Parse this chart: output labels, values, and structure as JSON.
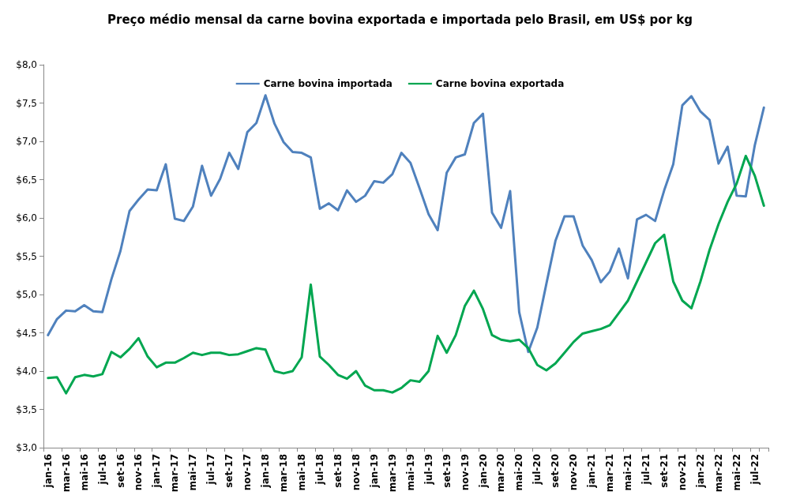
{
  "chart_data": {
    "type": "line",
    "title": "Preço médio mensal da carne bovina exportada e importada pelo Brasil, em US$ por kg",
    "categories": [
      "jan-16",
      null,
      "mar-16",
      null,
      "mai-16",
      null,
      "jul-16",
      null,
      "set-16",
      null,
      "nov-16",
      null,
      "jan-17",
      null,
      "mar-17",
      null,
      "mai-17",
      null,
      "jul-17",
      null,
      "set-17",
      null,
      "nov-17",
      null,
      "jan-18",
      null,
      "mar-18",
      null,
      "mai-18",
      null,
      "jul-18",
      null,
      "set-18",
      null,
      "nov-18",
      null,
      "jan-19",
      null,
      "mar-19",
      null,
      "mai-19",
      null,
      "jul-19",
      null,
      "set-19",
      null,
      "nov-19",
      null,
      "jan-20",
      null,
      "mar-20",
      null,
      "mai-20",
      null,
      "jul-20",
      null,
      "set-20",
      null,
      "nov-20",
      null,
      "jan-21",
      null,
      "mar-21",
      null,
      "mai-21",
      null,
      "jul-21",
      null,
      "set-21",
      null,
      "nov-21",
      null,
      "jan-22",
      null,
      "mar-22",
      null,
      "mai-22",
      null,
      "jul-22",
      null
    ],
    "series": [
      {
        "name": "Carne bovina importada",
        "color": "#4f81bd",
        "values": [
          4.47,
          4.68,
          4.79,
          4.78,
          4.86,
          4.78,
          4.77,
          5.2,
          5.57,
          6.09,
          6.24,
          6.37,
          6.36,
          6.7,
          5.99,
          5.96,
          6.15,
          6.68,
          6.29,
          6.51,
          6.85,
          6.64,
          7.12,
          7.24,
          7.6,
          7.23,
          6.99,
          6.86,
          6.85,
          6.79,
          6.12,
          6.19,
          6.1,
          6.36,
          6.21,
          6.29,
          6.48,
          6.46,
          6.57,
          6.85,
          6.72,
          6.39,
          6.05,
          5.84,
          6.59,
          6.79,
          6.83,
          7.24,
          7.36,
          6.07,
          5.87,
          6.35,
          4.77,
          4.25,
          4.57,
          5.14,
          5.7,
          6.02,
          6.02,
          5.64,
          5.45,
          5.16,
          5.3,
          5.6,
          5.21,
          5.98,
          6.04,
          5.96,
          6.36,
          6.7,
          7.47,
          7.59,
          7.39,
          7.28,
          6.71,
          6.93,
          6.29,
          6.28,
          6.95,
          7.44
        ]
      },
      {
        "name": "Carne bovina exportada",
        "color": "#00a650",
        "values": [
          3.91,
          3.92,
          3.71,
          3.92,
          3.95,
          3.93,
          3.96,
          4.25,
          4.18,
          4.29,
          4.43,
          4.19,
          4.05,
          4.11,
          4.11,
          4.17,
          4.24,
          4.21,
          4.24,
          4.24,
          4.21,
          4.22,
          4.26,
          4.3,
          4.28,
          4.0,
          3.97,
          4.0,
          4.18,
          5.13,
          4.19,
          4.08,
          3.95,
          3.9,
          4.0,
          3.81,
          3.75,
          3.75,
          3.72,
          3.78,
          3.88,
          3.86,
          4.0,
          4.46,
          4.24,
          4.47,
          4.85,
          5.05,
          4.81,
          4.47,
          4.41,
          4.39,
          4.41,
          4.3,
          4.08,
          4.01,
          4.1,
          4.24,
          4.38,
          4.49,
          4.52,
          4.55,
          4.6,
          4.76,
          4.92,
          5.17,
          5.42,
          5.67,
          5.78,
          5.17,
          4.92,
          4.82,
          5.17,
          5.58,
          5.92,
          6.21,
          6.45,
          6.81,
          6.55,
          6.16
        ]
      }
    ],
    "ylim": [
      3,
      8
    ],
    "yticks": [
      {
        "value": 3,
        "label": "$3,0"
      },
      {
        "value": 3.5,
        "label": "$3,5"
      },
      {
        "value": 4,
        "label": "$4,0"
      },
      {
        "value": 4.5,
        "label": "$4,5"
      },
      {
        "value": 5,
        "label": "$5,0"
      },
      {
        "value": 5.5,
        "label": "$5,5"
      },
      {
        "value": 6,
        "label": "$6,0"
      },
      {
        "value": 6.5,
        "label": "$6,5"
      },
      {
        "value": 7,
        "label": "$7,0"
      },
      {
        "value": 7.5,
        "label": "$7,5"
      },
      {
        "value": 8,
        "label": "$8,0"
      }
    ],
    "grid": false,
    "legend": "top",
    "marker": "none",
    "line_style": "solid"
  }
}
